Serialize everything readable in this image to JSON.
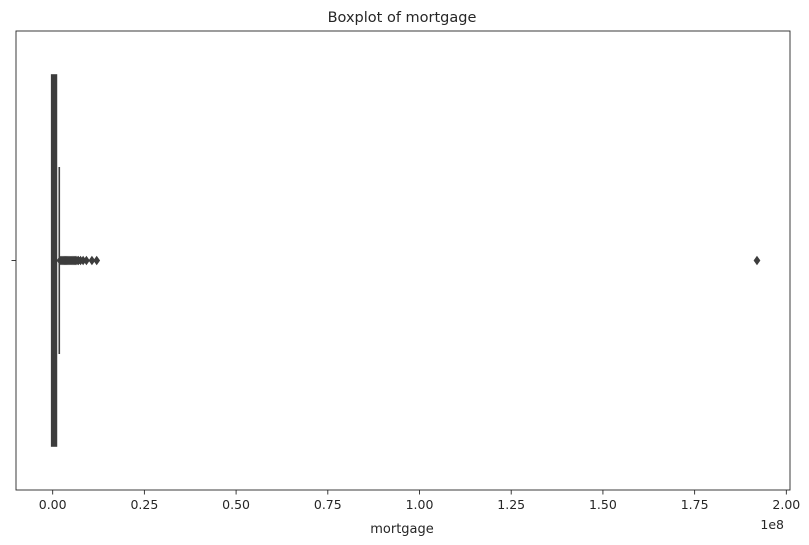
{
  "chart_data": {
    "type": "boxplot",
    "title": "Boxplot of mortgage",
    "xlabel": "mortgage",
    "ylabel": "",
    "x_scale_label": "1e8",
    "x_scale_factor": 100000000,
    "xlim": [
      -10000000,
      201000000
    ],
    "xticks": [
      0,
      25000000,
      50000000,
      75000000,
      100000000,
      125000000,
      150000000,
      175000000,
      200000000
    ],
    "xtick_labels": [
      "0.00",
      "0.25",
      "0.50",
      "0.75",
      "1.00",
      "1.25",
      "1.50",
      "1.75",
      "2.00"
    ],
    "yticks": [
      ""
    ],
    "grid": false,
    "box": {
      "q1": 0,
      "median": 0,
      "q3": 750000,
      "whisker_low": 0,
      "whisker_high": 1800000
    },
    "outliers": [
      2000000,
      2300000,
      2600000,
      2900000,
      3200000,
      3500000,
      3800000,
      4100000,
      4400000,
      4700000,
      5000000,
      5300000,
      5600000,
      5900000,
      6200000,
      6600000,
      7000000,
      7600000,
      8300000,
      9200000,
      10700000,
      12000000,
      192000000
    ],
    "color": "#3d3d3d"
  }
}
